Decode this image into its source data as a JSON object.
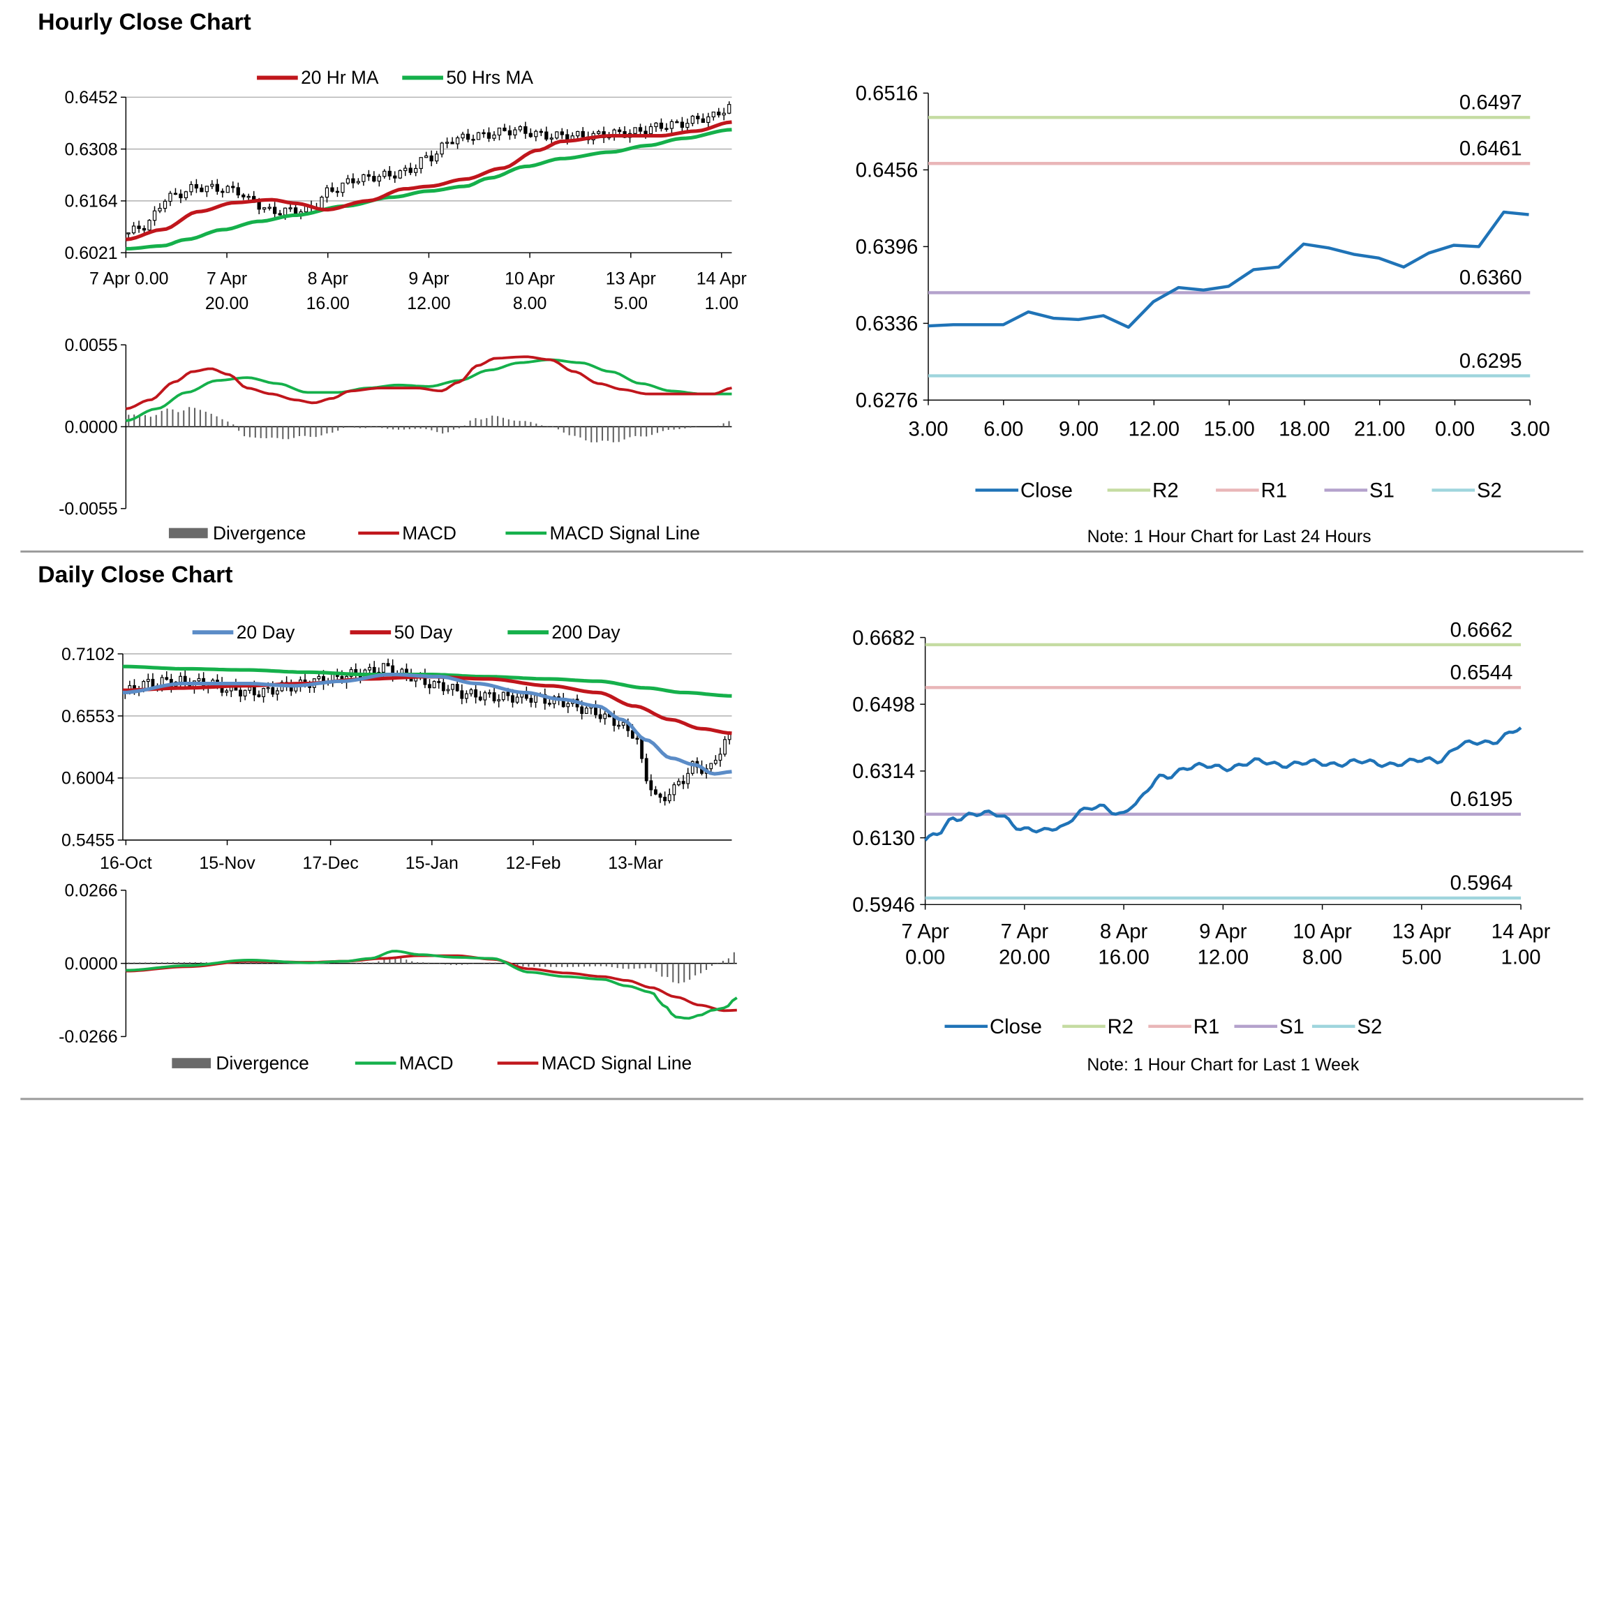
{
  "sections": {
    "hourly_title": "Hourly Close Chart",
    "daily_title": "Daily Close Chart"
  },
  "colors": {
    "red": "#C0161C",
    "green": "#15B04B",
    "blue": "#5B8CC7",
    "close": "#1F73B7",
    "r2": "#C5DCA2",
    "r1": "#E9B6B8",
    "s1": "#B4A2CC",
    "s2": "#9FD5DD",
    "grid": "#B0B0B0",
    "div": "#606060"
  },
  "chart_data": [
    {
      "id": "hourly_price",
      "type": "candlestick",
      "title": "",
      "legend": [
        "20 Hr MA",
        "50 Hrs MA"
      ],
      "ylim": [
        0.6021,
        0.6452
      ],
      "yticks": [
        "0.6452",
        "0.6308",
        "0.6164",
        "0.6021"
      ],
      "xticks": [
        [
          "7 Apr 0.00",
          ""
        ],
        [
          "7 Apr",
          "20.00"
        ],
        [
          "8 Apr",
          "16.00"
        ],
        [
          "9 Apr",
          "12.00"
        ],
        [
          "10 Apr",
          "8.00"
        ],
        [
          "13 Apr",
          "5.00"
        ],
        [
          "14 Apr",
          "1.00"
        ]
      ],
      "close_ctrl": [
        [
          0,
          0.6075
        ],
        [
          0.03,
          0.6095
        ],
        [
          0.07,
          0.6175
        ],
        [
          0.12,
          0.6202
        ],
        [
          0.18,
          0.6195
        ],
        [
          0.21,
          0.616
        ],
        [
          0.24,
          0.6135
        ],
        [
          0.3,
          0.614
        ],
        [
          0.34,
          0.6195
        ],
        [
          0.38,
          0.6225
        ],
        [
          0.43,
          0.6235
        ],
        [
          0.46,
          0.6245
        ],
        [
          0.5,
          0.6285
        ],
        [
          0.54,
          0.6335
        ],
        [
          0.58,
          0.6345
        ],
        [
          0.64,
          0.636
        ],
        [
          0.7,
          0.6345
        ],
        [
          0.76,
          0.6345
        ],
        [
          0.82,
          0.6352
        ],
        [
          0.9,
          0.6375
        ],
        [
          0.96,
          0.6395
        ],
        [
          1.0,
          0.6425
        ]
      ],
      "ma20_ctrl": [
        [
          0,
          0.6058
        ],
        [
          0.06,
          0.6085
        ],
        [
          0.12,
          0.6135
        ],
        [
          0.18,
          0.616
        ],
        [
          0.24,
          0.6168
        ],
        [
          0.28,
          0.6158
        ],
        [
          0.33,
          0.614
        ],
        [
          0.4,
          0.6165
        ],
        [
          0.46,
          0.6198
        ],
        [
          0.5,
          0.6205
        ],
        [
          0.56,
          0.6225
        ],
        [
          0.62,
          0.6255
        ],
        [
          0.68,
          0.6305
        ],
        [
          0.72,
          0.633
        ],
        [
          0.8,
          0.6345
        ],
        [
          0.88,
          0.6345
        ],
        [
          0.94,
          0.6358
        ],
        [
          1.0,
          0.6383
        ]
      ],
      "ma50_ctrl": [
        [
          0,
          0.6032
        ],
        [
          0.06,
          0.604
        ],
        [
          0.1,
          0.6058
        ],
        [
          0.16,
          0.6085
        ],
        [
          0.22,
          0.6108
        ],
        [
          0.28,
          0.6125
        ],
        [
          0.36,
          0.615
        ],
        [
          0.44,
          0.6175
        ],
        [
          0.5,
          0.6192
        ],
        [
          0.56,
          0.6205
        ],
        [
          0.6,
          0.6228
        ],
        [
          0.66,
          0.626
        ],
        [
          0.72,
          0.6282
        ],
        [
          0.8,
          0.63
        ],
        [
          0.86,
          0.6318
        ],
        [
          0.92,
          0.6338
        ],
        [
          1.0,
          0.6362
        ]
      ]
    },
    {
      "id": "hourly_macd",
      "type": "macd",
      "legend": [
        "Divergence",
        "MACD",
        "MACD Signal Line"
      ],
      "ylim": [
        -0.0055,
        0.0055
      ],
      "yticks": [
        "0.0055",
        "0.0000",
        "-0.0055"
      ],
      "macd_ctrl": [
        [
          0,
          0.0012
        ],
        [
          0.04,
          0.0018
        ],
        [
          0.08,
          0.003
        ],
        [
          0.11,
          0.0037
        ],
        [
          0.14,
          0.0039
        ],
        [
          0.17,
          0.0035
        ],
        [
          0.2,
          0.0026
        ],
        [
          0.24,
          0.0022
        ],
        [
          0.28,
          0.0018
        ],
        [
          0.31,
          0.0016
        ],
        [
          0.34,
          0.0019
        ],
        [
          0.37,
          0.0024
        ],
        [
          0.42,
          0.0026
        ],
        [
          0.48,
          0.0026
        ],
        [
          0.52,
          0.0024
        ],
        [
          0.55,
          0.003
        ],
        [
          0.58,
          0.0041
        ],
        [
          0.61,
          0.0046
        ],
        [
          0.66,
          0.0047
        ],
        [
          0.7,
          0.0045
        ],
        [
          0.74,
          0.0037
        ],
        [
          0.78,
          0.0029
        ],
        [
          0.82,
          0.0025
        ],
        [
          0.86,
          0.0022
        ],
        [
          0.9,
          0.0022
        ],
        [
          0.94,
          0.0022
        ],
        [
          0.97,
          0.0022
        ],
        [
          1.0,
          0.0026
        ]
      ],
      "signal_ctrl": [
        [
          0,
          0.0004
        ],
        [
          0.05,
          0.0012
        ],
        [
          0.1,
          0.0023
        ],
        [
          0.15,
          0.0031
        ],
        [
          0.2,
          0.0033
        ],
        [
          0.25,
          0.0029
        ],
        [
          0.3,
          0.0023
        ],
        [
          0.35,
          0.0023
        ],
        [
          0.4,
          0.0026
        ],
        [
          0.45,
          0.0028
        ],
        [
          0.5,
          0.0027
        ],
        [
          0.55,
          0.0031
        ],
        [
          0.6,
          0.0038
        ],
        [
          0.65,
          0.0043
        ],
        [
          0.7,
          0.0045
        ],
        [
          0.75,
          0.0043
        ],
        [
          0.8,
          0.0037
        ],
        [
          0.85,
          0.0029
        ],
        [
          0.9,
          0.0024
        ],
        [
          0.95,
          0.0022
        ],
        [
          1.0,
          0.0022
        ]
      ]
    },
    {
      "id": "hourly_levels",
      "type": "line",
      "ylim": [
        0.6276,
        0.6516
      ],
      "yticks": [
        "0.6516",
        "0.6456",
        "0.6396",
        "0.6336",
        "0.6276"
      ],
      "xticks": [
        "3.00",
        "6.00",
        "9.00",
        "12.00",
        "15.00",
        "18.00",
        "21.00",
        "0.00",
        "3.00"
      ],
      "close": [
        0.6334,
        0.6335,
        0.6335,
        0.6335,
        0.6345,
        0.634,
        0.6339,
        0.6342,
        0.6333,
        0.6353,
        0.6364,
        0.6362,
        0.6365,
        0.6378,
        0.638,
        0.6398,
        0.6395,
        0.639,
        0.6387,
        0.638,
        0.6391,
        0.6397,
        0.6396,
        0.6423,
        0.6421
      ],
      "levels": [
        {
          "name": "R2",
          "value": 0.6497,
          "label": "0.6497"
        },
        {
          "name": "R1",
          "value": 0.6461,
          "label": "0.6461"
        },
        {
          "name": "S1",
          "value": 0.636,
          "label": "0.6360"
        },
        {
          "name": "S2",
          "value": 0.6295,
          "label": "0.6295"
        }
      ],
      "legend": [
        "Close",
        "R2",
        "R1",
        "S1",
        "S2"
      ],
      "note": "Note: 1 Hour Chart for Last 24 Hours"
    },
    {
      "id": "daily_price",
      "type": "candlestick",
      "legend": [
        "20 Day",
        "50 Day",
        "200 Day"
      ],
      "ylim": [
        0.5455,
        0.7102
      ],
      "yticks": [
        "0.7102",
        "0.6553",
        "0.6004",
        "0.5455"
      ],
      "xticks": [
        "16-Oct",
        "15-Nov",
        "17-Dec",
        "15-Jan",
        "12-Feb",
        "13-Mar"
      ],
      "close_ctrl": [
        [
          0,
          0.676
        ],
        [
          0.04,
          0.684
        ],
        [
          0.08,
          0.686
        ],
        [
          0.14,
          0.684
        ],
        [
          0.18,
          0.678
        ],
        [
          0.22,
          0.676
        ],
        [
          0.28,
          0.682
        ],
        [
          0.34,
          0.688
        ],
        [
          0.4,
          0.694
        ],
        [
          0.43,
          0.698
        ],
        [
          0.46,
          0.692
        ],
        [
          0.52,
          0.682
        ],
        [
          0.57,
          0.674
        ],
        [
          0.62,
          0.672
        ],
        [
          0.66,
          0.672
        ],
        [
          0.72,
          0.668
        ],
        [
          0.77,
          0.66
        ],
        [
          0.8,
          0.652
        ],
        [
          0.84,
          0.64
        ],
        [
          0.86,
          0.6
        ],
        [
          0.88,
          0.58
        ],
        [
          0.9,
          0.588
        ],
        [
          0.92,
          0.6
        ],
        [
          0.94,
          0.612
        ],
        [
          0.96,
          0.606
        ],
        [
          0.98,
          0.624
        ],
        [
          1.0,
          0.64
        ]
      ],
      "ma20_ctrl": [
        [
          0,
          0.676
        ],
        [
          0.1,
          0.684
        ],
        [
          0.2,
          0.684
        ],
        [
          0.28,
          0.682
        ],
        [
          0.36,
          0.686
        ],
        [
          0.44,
          0.692
        ],
        [
          0.52,
          0.69
        ],
        [
          0.58,
          0.684
        ],
        [
          0.66,
          0.676
        ],
        [
          0.72,
          0.67
        ],
        [
          0.78,
          0.664
        ],
        [
          0.82,
          0.652
        ],
        [
          0.86,
          0.634
        ],
        [
          0.9,
          0.618
        ],
        [
          0.94,
          0.612
        ],
        [
          0.97,
          0.604
        ],
        [
          1.0,
          0.606
        ]
      ],
      "ma50_ctrl": [
        [
          0,
          0.678
        ],
        [
          0.1,
          0.68
        ],
        [
          0.2,
          0.682
        ],
        [
          0.3,
          0.684
        ],
        [
          0.4,
          0.688
        ],
        [
          0.5,
          0.69
        ],
        [
          0.6,
          0.688
        ],
        [
          0.7,
          0.682
        ],
        [
          0.78,
          0.676
        ],
        [
          0.84,
          0.664
        ],
        [
          0.9,
          0.652
        ],
        [
          0.95,
          0.644
        ],
        [
          1.0,
          0.64
        ]
      ],
      "ma200_ctrl": [
        [
          0,
          0.699
        ],
        [
          0.1,
          0.697
        ],
        [
          0.2,
          0.696
        ],
        [
          0.3,
          0.694
        ],
        [
          0.4,
          0.692
        ],
        [
          0.5,
          0.692
        ],
        [
          0.6,
          0.69
        ],
        [
          0.7,
          0.688
        ],
        [
          0.78,
          0.686
        ],
        [
          0.86,
          0.68
        ],
        [
          0.92,
          0.676
        ],
        [
          1.0,
          0.673
        ]
      ]
    },
    {
      "id": "daily_macd",
      "type": "macd",
      "legend": [
        "Divergence",
        "MACD",
        "MACD Signal Line"
      ],
      "ylim": [
        -0.0266,
        0.0266
      ],
      "yticks": [
        "0.0266",
        "0.0000",
        "-0.0266"
      ],
      "macd_ctrl": [
        [
          0,
          -0.0025
        ],
        [
          0.1,
          -0.0008
        ],
        [
          0.2,
          0.0012
        ],
        [
          0.3,
          0.0002
        ],
        [
          0.36,
          0.0008
        ],
        [
          0.4,
          0.0018
        ],
        [
          0.44,
          0.0045
        ],
        [
          0.48,
          0.0032
        ],
        [
          0.54,
          0.0022
        ],
        [
          0.6,
          0.0018
        ],
        [
          0.66,
          -0.0032
        ],
        [
          0.72,
          -0.0048
        ],
        [
          0.78,
          -0.0058
        ],
        [
          0.82,
          -0.0082
        ],
        [
          0.86,
          -0.0105
        ],
        [
          0.88,
          -0.0152
        ],
        [
          0.9,
          -0.0195
        ],
        [
          0.92,
          -0.02
        ],
        [
          0.94,
          -0.0188
        ],
        [
          0.96,
          -0.017
        ],
        [
          0.98,
          -0.0162
        ],
        [
          1.0,
          -0.0125
        ]
      ],
      "signal_ctrl": [
        [
          0,
          -0.0028
        ],
        [
          0.1,
          -0.0012
        ],
        [
          0.2,
          0.0008
        ],
        [
          0.3,
          0.0004
        ],
        [
          0.36,
          0.0008
        ],
        [
          0.42,
          0.0018
        ],
        [
          0.48,
          0.0028
        ],
        [
          0.54,
          0.0028
        ],
        [
          0.6,
          0.0015
        ],
        [
          0.66,
          -0.002
        ],
        [
          0.72,
          -0.0035
        ],
        [
          0.78,
          -0.0048
        ],
        [
          0.82,
          -0.0062
        ],
        [
          0.86,
          -0.0088
        ],
        [
          0.9,
          -0.0122
        ],
        [
          0.94,
          -0.0152
        ],
        [
          0.98,
          -0.0172
        ],
        [
          1.0,
          -0.017
        ]
      ]
    },
    {
      "id": "weekly_levels",
      "type": "line",
      "ylim": [
        0.5946,
        0.6682
      ],
      "yticks": [
        "0.6682",
        "0.6498",
        "0.6314",
        "0.6130",
        "0.5946"
      ],
      "xticks": [
        [
          "7 Apr",
          "0.00"
        ],
        [
          "7 Apr",
          "20.00"
        ],
        [
          "8 Apr",
          "16.00"
        ],
        [
          "9 Apr",
          "12.00"
        ],
        [
          "10 Apr",
          "8.00"
        ],
        [
          "13 Apr",
          "5.00"
        ],
        [
          "14 Apr",
          "1.00"
        ]
      ],
      "close_ctrl": [
        [
          0,
          0.6123
        ],
        [
          0.02,
          0.6138
        ],
        [
          0.05,
          0.6185
        ],
        [
          0.08,
          0.6198
        ],
        [
          0.12,
          0.6192
        ],
        [
          0.17,
          0.6155
        ],
        [
          0.2,
          0.6145
        ],
        [
          0.23,
          0.6162
        ],
        [
          0.26,
          0.6205
        ],
        [
          0.29,
          0.6212
        ],
        [
          0.33,
          0.6198
        ],
        [
          0.35,
          0.6225
        ],
        [
          0.4,
          0.6298
        ],
        [
          0.44,
          0.6325
        ],
        [
          0.5,
          0.6325
        ],
        [
          0.56,
          0.6338
        ],
        [
          0.6,
          0.6334
        ],
        [
          0.67,
          0.6335
        ],
        [
          0.72,
          0.6338
        ],
        [
          0.76,
          0.6335
        ],
        [
          0.8,
          0.6336
        ],
        [
          0.86,
          0.6346
        ],
        [
          0.9,
          0.6385
        ],
        [
          0.94,
          0.6393
        ],
        [
          1.0,
          0.6427
        ]
      ],
      "levels": [
        {
          "name": "R2",
          "value": 0.6662,
          "label": "0.6662"
        },
        {
          "name": "R1",
          "value": 0.6544,
          "label": "0.6544"
        },
        {
          "name": "S1",
          "value": 0.6195,
          "label": "0.6195"
        },
        {
          "name": "S2",
          "value": 0.5964,
          "label": "0.5964"
        }
      ],
      "legend": [
        "Close",
        "R2",
        "R1",
        "S1",
        "S2"
      ],
      "note": "Note: 1 Hour Chart for Last 1 Week"
    }
  ]
}
